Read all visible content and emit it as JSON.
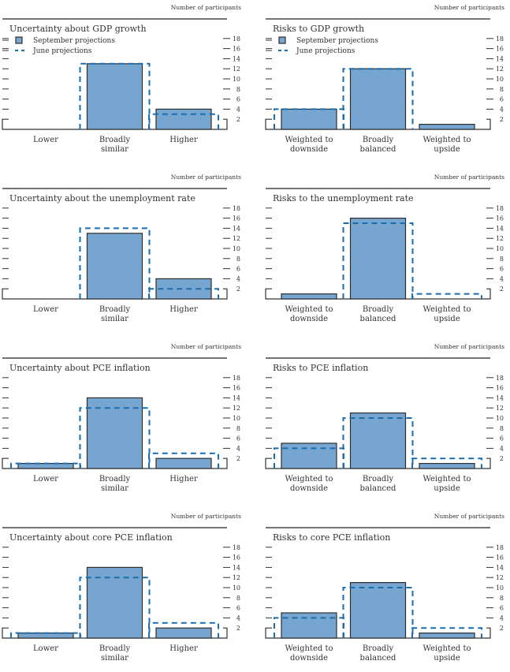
{
  "colors": {
    "bar_fill": "#76a6cf",
    "bar_stroke": "#2e2e2e",
    "june_line": "#1a6eb0",
    "axis": "#333333",
    "text": "#333333"
  },
  "chart_data": [
    {
      "type": "bar",
      "title": "Uncertainty about GDP growth",
      "units_label": "Number of participants",
      "legend": [
        "September projections",
        "June projections"
      ],
      "legend_placement": "top-left",
      "categories": [
        "Lower",
        "Broadly similar",
        "Higher"
      ],
      "category_lines": [
        [
          "Lower"
        ],
        [
          "Broadly",
          "similar"
        ],
        [
          "Higher"
        ]
      ],
      "series": [
        {
          "name": "September projections",
          "style": "bar",
          "values": [
            0,
            13,
            4
          ]
        },
        {
          "name": "June projections",
          "style": "dashed-step",
          "values": [
            0,
            13,
            3
          ]
        }
      ],
      "yticks": [
        2,
        4,
        6,
        8,
        10,
        12,
        14,
        16,
        18
      ],
      "ylim": [
        0,
        19
      ],
      "grid": false
    },
    {
      "type": "bar",
      "title": "Risks to GDP growth",
      "units_label": "Number of participants",
      "legend": [
        "September projections",
        "June projections"
      ],
      "legend_placement": "top-left",
      "categories": [
        "Weighted to downside",
        "Broadly balanced",
        "Weighted to upside"
      ],
      "category_lines": [
        [
          "Weighted to",
          "downside"
        ],
        [
          "Broadly",
          "balanced"
        ],
        [
          "Weighted to",
          "upside"
        ]
      ],
      "series": [
        {
          "name": "September projections",
          "style": "bar",
          "values": [
            4,
            12,
            1
          ]
        },
        {
          "name": "June projections",
          "style": "dashed-step",
          "values": [
            4,
            12,
            0
          ]
        }
      ],
      "yticks": [
        2,
        4,
        6,
        8,
        10,
        12,
        14,
        16,
        18
      ],
      "ylim": [
        0,
        19
      ],
      "grid": false
    },
    {
      "type": "bar",
      "title": "Uncertainty about the unemployment rate",
      "units_label": "Number of participants",
      "legend": [],
      "categories": [
        "Lower",
        "Broadly similar",
        "Higher"
      ],
      "category_lines": [
        [
          "Lower"
        ],
        [
          "Broadly",
          "similar"
        ],
        [
          "Higher"
        ]
      ],
      "series": [
        {
          "name": "September projections",
          "style": "bar",
          "values": [
            0,
            13,
            4
          ]
        },
        {
          "name": "June projections",
          "style": "dashed-step",
          "values": [
            0,
            14,
            2
          ]
        }
      ],
      "yticks": [
        2,
        4,
        6,
        8,
        10,
        12,
        14,
        16,
        18
      ],
      "ylim": [
        0,
        19
      ],
      "grid": false
    },
    {
      "type": "bar",
      "title": "Risks to the unemployment rate",
      "units_label": "Number of participants",
      "legend": [],
      "categories": [
        "Weighted to downside",
        "Broadly balanced",
        "Weighted to upside"
      ],
      "category_lines": [
        [
          "Weighted to",
          "downside"
        ],
        [
          "Broadly",
          "balanced"
        ],
        [
          "Weighted to",
          "upside"
        ]
      ],
      "series": [
        {
          "name": "September projections",
          "style": "bar",
          "values": [
            1,
            16,
            0
          ]
        },
        {
          "name": "June projections",
          "style": "dashed-step",
          "values": [
            0,
            15,
            1
          ]
        }
      ],
      "yticks": [
        2,
        4,
        6,
        8,
        10,
        12,
        14,
        16,
        18
      ],
      "ylim": [
        0,
        19
      ],
      "grid": false
    },
    {
      "type": "bar",
      "title": "Uncertainty about PCE inflation",
      "units_label": "Number of participants",
      "legend": [],
      "categories": [
        "Lower",
        "Broadly similar",
        "Higher"
      ],
      "category_lines": [
        [
          "Lower"
        ],
        [
          "Broadly",
          "similar"
        ],
        [
          "Higher"
        ]
      ],
      "series": [
        {
          "name": "September projections",
          "style": "bar",
          "values": [
            1,
            14,
            2
          ]
        },
        {
          "name": "June projections",
          "style": "dashed-step",
          "values": [
            1,
            12,
            3
          ]
        }
      ],
      "yticks": [
        2,
        4,
        6,
        8,
        10,
        12,
        14,
        16,
        18
      ],
      "ylim": [
        0,
        19
      ],
      "grid": false
    },
    {
      "type": "bar",
      "title": "Risks to PCE inflation",
      "units_label": "Number of participants",
      "legend": [],
      "categories": [
        "Weighted to downside",
        "Broadly balanced",
        "Weighted to upside"
      ],
      "category_lines": [
        [
          "Weighted to",
          "downside"
        ],
        [
          "Broadly",
          "balanced"
        ],
        [
          "Weighted to",
          "upside"
        ]
      ],
      "series": [
        {
          "name": "September projections",
          "style": "bar",
          "values": [
            5,
            11,
            1
          ]
        },
        {
          "name": "June projections",
          "style": "dashed-step",
          "values": [
            4,
            10,
            2
          ]
        }
      ],
      "yticks": [
        2,
        4,
        6,
        8,
        10,
        12,
        14,
        16,
        18
      ],
      "ylim": [
        0,
        19
      ],
      "grid": false
    },
    {
      "type": "bar",
      "title": "Uncertainty about core PCE inflation",
      "units_label": "Number of participants",
      "legend": [],
      "categories": [
        "Lower",
        "Broadly similar",
        "Higher"
      ],
      "category_lines": [
        [
          "Lower"
        ],
        [
          "Broadly",
          "similar"
        ],
        [
          "Higher"
        ]
      ],
      "series": [
        {
          "name": "September projections",
          "style": "bar",
          "values": [
            1,
            14,
            2
          ]
        },
        {
          "name": "June projections",
          "style": "dashed-step",
          "values": [
            1,
            12,
            3
          ]
        }
      ],
      "yticks": [
        2,
        4,
        6,
        8,
        10,
        12,
        14,
        16,
        18
      ],
      "ylim": [
        0,
        19
      ],
      "grid": false
    },
    {
      "type": "bar",
      "title": "Risks to core PCE inflation",
      "units_label": "Number of participants",
      "legend": [],
      "categories": [
        "Weighted to downside",
        "Broadly balanced",
        "Weighted to upside"
      ],
      "category_lines": [
        [
          "Weighted to",
          "downside"
        ],
        [
          "Broadly",
          "balanced"
        ],
        [
          "Weighted to",
          "upside"
        ]
      ],
      "series": [
        {
          "name": "September projections",
          "style": "bar",
          "values": [
            5,
            11,
            1
          ]
        },
        {
          "name": "June projections",
          "style": "dashed-step",
          "values": [
            4,
            10,
            2
          ]
        }
      ],
      "yticks": [
        2,
        4,
        6,
        8,
        10,
        12,
        14,
        16,
        18
      ],
      "ylim": [
        0,
        19
      ],
      "grid": false
    }
  ]
}
